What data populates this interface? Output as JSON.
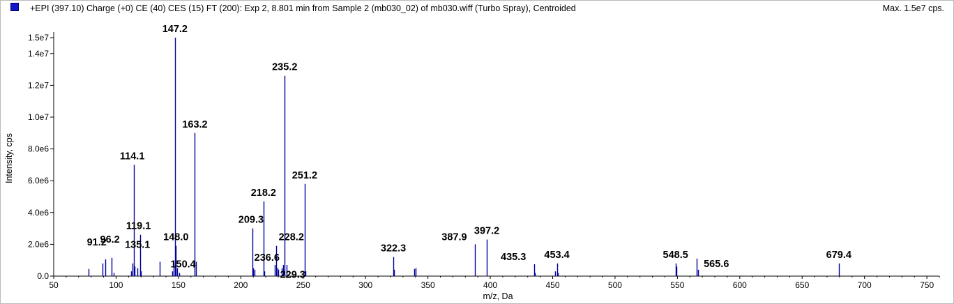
{
  "header": {
    "title": "+EPI (397.10) Charge (+0) CE (40) CES (15) FT (200): Exp 2, 8.801 min from Sample 2 (mb030_02) of mb030.wiff (Turbo Spray), Centroided",
    "max_label": "Max. 1.5e7 cps."
  },
  "colors": {
    "series": "#00009c",
    "marker": "#1414c8"
  },
  "chart_data": {
    "type": "bar",
    "title": "+EPI (397.10) Charge (+0) CE (40) CES (15) FT (200): Exp 2, 8.801 min from Sample 2 (mb030_02) of mb030.wiff (Turbo Spray), Centroided",
    "xlabel": "m/z, Da",
    "ylabel": "Intensity, cps",
    "xlim": [
      50,
      760
    ],
    "ylim": [
      0,
      15000000
    ],
    "x_ticks": [
      50,
      100,
      150,
      200,
      250,
      300,
      350,
      400,
      450,
      500,
      550,
      600,
      650,
      700,
      750
    ],
    "x_tick_labels": [
      "50",
      "100",
      "150",
      "200",
      "250",
      "300",
      "350",
      "400",
      "450",
      "500",
      "550",
      "600",
      "650",
      "700",
      "750"
    ],
    "y_ticks": [
      0,
      2000000,
      4000000,
      6000000,
      8000000,
      10000000,
      12000000,
      14000000,
      15000000
    ],
    "y_tick_labels": [
      "0.0",
      "2.0e6",
      "4.0e6",
      "6.0e6",
      "8.0e6",
      "1.0e7",
      "1.2e7",
      "1.4e7",
      "1.5e7"
    ],
    "grid": false,
    "peaks": [
      {
        "x": 78.0,
        "y": 450000
      },
      {
        "x": 89.0,
        "y": 800000
      },
      {
        "x": 91.2,
        "y": 1050000
      },
      {
        "x": 96.2,
        "y": 1150000
      },
      {
        "x": 98.0,
        "y": 200000
      },
      {
        "x": 112.0,
        "y": 300000
      },
      {
        "x": 113.0,
        "y": 800000
      },
      {
        "x": 114.1,
        "y": 7000000
      },
      {
        "x": 115.0,
        "y": 600000
      },
      {
        "x": 117.0,
        "y": 500000
      },
      {
        "x": 119.1,
        "y": 2600000
      },
      {
        "x": 120.0,
        "y": 300000
      },
      {
        "x": 135.1,
        "y": 900000
      },
      {
        "x": 145.0,
        "y": 300000
      },
      {
        "x": 146.0,
        "y": 800000
      },
      {
        "x": 147.2,
        "y": 15000000
      },
      {
        "x": 148.0,
        "y": 1900000
      },
      {
        "x": 149.0,
        "y": 500000
      },
      {
        "x": 150.4,
        "y": 200000
      },
      {
        "x": 163.2,
        "y": 9000000
      },
      {
        "x": 164.0,
        "y": 900000
      },
      {
        "x": 209.3,
        "y": 3000000
      },
      {
        "x": 210.0,
        "y": 500000
      },
      {
        "x": 211.0,
        "y": 400000
      },
      {
        "x": 218.2,
        "y": 4700000
      },
      {
        "x": 219.0,
        "y": 300000
      },
      {
        "x": 227.0,
        "y": 700000
      },
      {
        "x": 228.2,
        "y": 1900000
      },
      {
        "x": 229.3,
        "y": 500000
      },
      {
        "x": 230.0,
        "y": 400000
      },
      {
        "x": 233.0,
        "y": 500000
      },
      {
        "x": 234.0,
        "y": 700000
      },
      {
        "x": 235.2,
        "y": 12600000
      },
      {
        "x": 236.6,
        "y": 700000
      },
      {
        "x": 251.2,
        "y": 5800000
      },
      {
        "x": 252.0,
        "y": 300000
      },
      {
        "x": 322.3,
        "y": 1200000
      },
      {
        "x": 323.0,
        "y": 400000
      },
      {
        "x": 339.0,
        "y": 450000
      },
      {
        "x": 340.0,
        "y": 500000
      },
      {
        "x": 387.9,
        "y": 2000000
      },
      {
        "x": 397.2,
        "y": 2300000
      },
      {
        "x": 435.3,
        "y": 750000
      },
      {
        "x": 436.0,
        "y": 200000
      },
      {
        "x": 452.0,
        "y": 300000
      },
      {
        "x": 453.4,
        "y": 800000
      },
      {
        "x": 454.0,
        "y": 200000
      },
      {
        "x": 548.5,
        "y": 800000
      },
      {
        "x": 549.5,
        "y": 600000
      },
      {
        "x": 565.6,
        "y": 1100000
      },
      {
        "x": 566.5,
        "y": 400000
      },
      {
        "x": 679.4,
        "y": 800000
      }
    ],
    "annotations": [
      {
        "text": "91.2",
        "x": 91.2,
        "y": 1050000
      },
      {
        "text": "96.2",
        "x": 96.2,
        "y": 1150000
      },
      {
        "text": "114.1",
        "x": 114.1,
        "y": 7000000
      },
      {
        "text": "119.1",
        "x": 119.1,
        "y": 2600000
      },
      {
        "text": "135.1",
        "x": 135.1,
        "y": 900000
      },
      {
        "text": "147.2",
        "x": 147.2,
        "y": 15000000
      },
      {
        "text": "148.0",
        "x": 148.0,
        "y": 1900000
      },
      {
        "text": "150.4",
        "x": 150.4,
        "y": 200000
      },
      {
        "text": "163.2",
        "x": 163.2,
        "y": 9000000
      },
      {
        "text": "209.3",
        "x": 209.3,
        "y": 3000000
      },
      {
        "text": "218.2",
        "x": 218.2,
        "y": 4700000
      },
      {
        "text": "228.2",
        "x": 228.2,
        "y": 1900000
      },
      {
        "text": "229.3",
        "x": 229.3,
        "y": 500000
      },
      {
        "text": "235.2",
        "x": 235.2,
        "y": 12600000
      },
      {
        "text": "236.6",
        "x": 236.6,
        "y": 700000
      },
      {
        "text": "251.2",
        "x": 251.2,
        "y": 5800000
      },
      {
        "text": "322.3",
        "x": 322.3,
        "y": 1200000
      },
      {
        "text": "387.9",
        "x": 387.9,
        "y": 2000000
      },
      {
        "text": "397.2",
        "x": 397.2,
        "y": 2300000
      },
      {
        "text": "435.3",
        "x": 435.3,
        "y": 750000
      },
      {
        "text": "453.4",
        "x": 453.4,
        "y": 800000
      },
      {
        "text": "548.5",
        "x": 548.5,
        "y": 800000
      },
      {
        "text": "565.6",
        "x": 565.6,
        "y": 1100000
      },
      {
        "text": "679.4",
        "x": 679.4,
        "y": 800000
      }
    ]
  }
}
